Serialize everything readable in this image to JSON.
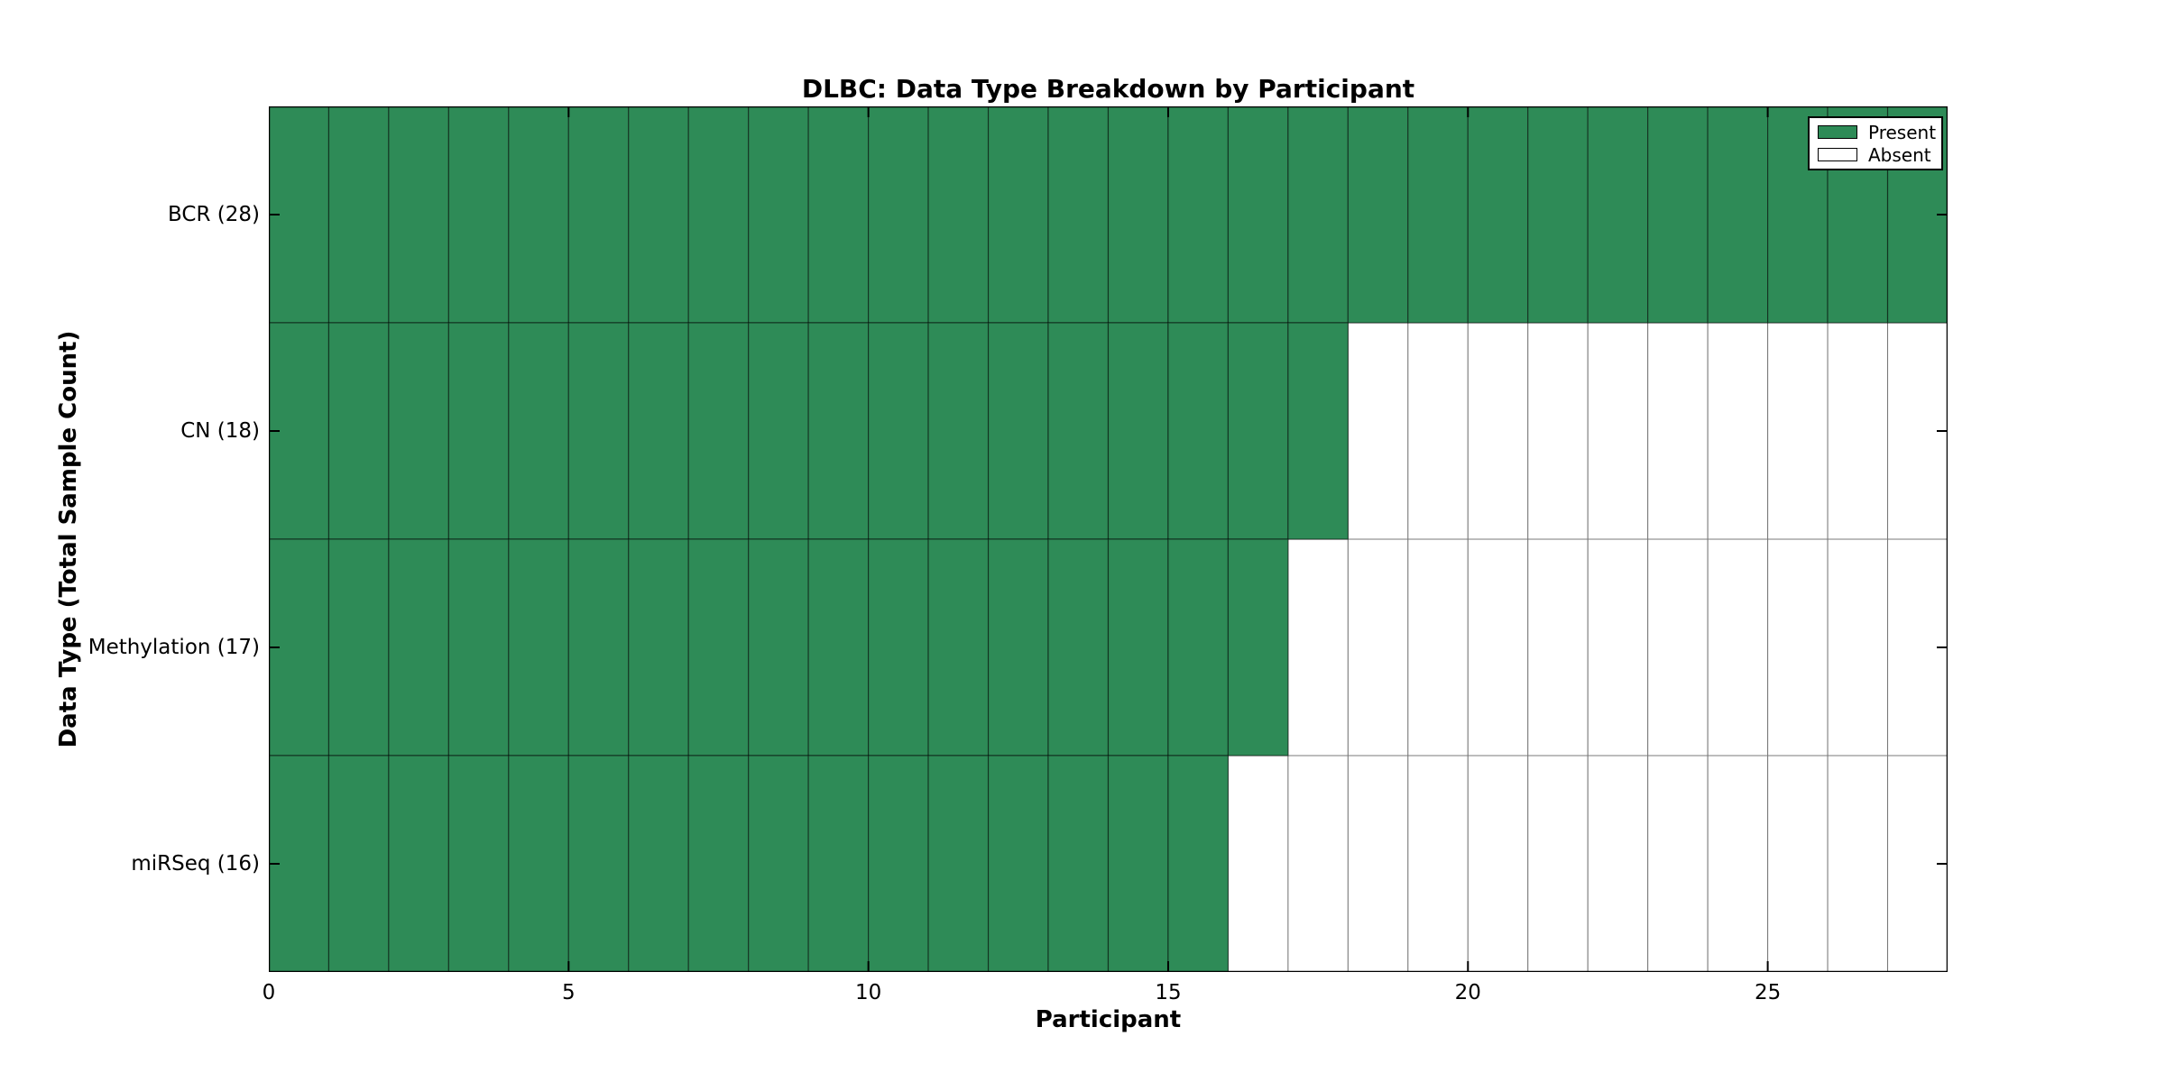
{
  "figure": {
    "background": "#ffffff"
  },
  "chart_data": {
    "type": "heatmap",
    "title": "DLBC: Data Type Breakdown by Participant",
    "xlabel": "Participant",
    "ylabel": "Data Type (Total Sample Count)",
    "x_axis": {
      "min": 0,
      "max": 28,
      "ticks": [
        0,
        5,
        10,
        15,
        20,
        25
      ]
    },
    "n_participants": 28,
    "rows": [
      {
        "label": "BCR (28)",
        "data_type": "BCR",
        "total_sample_count": 28,
        "present_count": 28,
        "values": [
          1,
          1,
          1,
          1,
          1,
          1,
          1,
          1,
          1,
          1,
          1,
          1,
          1,
          1,
          1,
          1,
          1,
          1,
          1,
          1,
          1,
          1,
          1,
          1,
          1,
          1,
          1,
          1
        ]
      },
      {
        "label": "CN (18)",
        "data_type": "CN",
        "total_sample_count": 18,
        "present_count": 18,
        "values": [
          1,
          1,
          1,
          1,
          1,
          1,
          1,
          1,
          1,
          1,
          1,
          1,
          1,
          1,
          1,
          1,
          1,
          1,
          0,
          0,
          0,
          0,
          0,
          0,
          0,
          0,
          0,
          0
        ]
      },
      {
        "label": "Methylation (17)",
        "data_type": "Methylation",
        "total_sample_count": 17,
        "present_count": 17,
        "values": [
          1,
          1,
          1,
          1,
          1,
          1,
          1,
          1,
          1,
          1,
          1,
          1,
          1,
          1,
          1,
          1,
          1,
          0,
          0,
          0,
          0,
          0,
          0,
          0,
          0,
          0,
          0,
          0
        ]
      },
      {
        "label": "miRSeq (16)",
        "data_type": "miRSeq",
        "total_sample_count": 16,
        "present_count": 16,
        "values": [
          1,
          1,
          1,
          1,
          1,
          1,
          1,
          1,
          1,
          1,
          1,
          1,
          1,
          1,
          1,
          1,
          0,
          0,
          0,
          0,
          0,
          0,
          0,
          0,
          0,
          0,
          0,
          0
        ]
      }
    ],
    "legend": {
      "position": "upper right",
      "entries": [
        {
          "label": "Present",
          "color": "#2e8b57"
        },
        {
          "label": "Absent",
          "color": "#ffffff"
        }
      ]
    },
    "colors": {
      "present": "#2e8b57",
      "absent": "#ffffff",
      "present_cell_edge": "rgba(0,0,0,0.5)",
      "absent_grid": "#787878",
      "axis": "#000000"
    },
    "grid": true
  }
}
